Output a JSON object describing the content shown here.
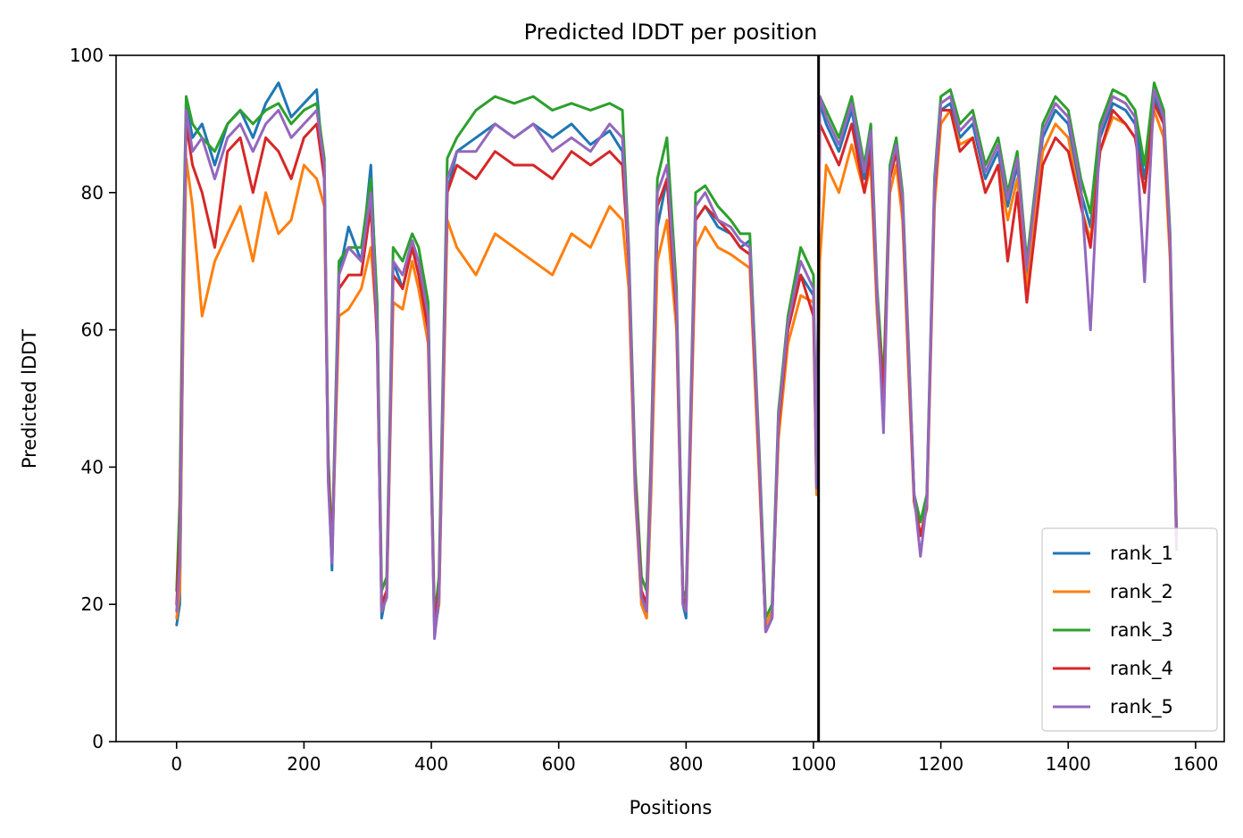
{
  "chart_data": {
    "type": "line",
    "title": "Predicted lDDT per position",
    "xlabel": "Positions",
    "ylabel": "Predicted lDDT",
    "xlim": [
      -95,
      1645
    ],
    "ylim": [
      0,
      100
    ],
    "xticks": [
      0,
      200,
      400,
      600,
      800,
      1000,
      1200,
      1400,
      1600
    ],
    "yticks": [
      0,
      20,
      40,
      60,
      80,
      100
    ],
    "grid": false,
    "legend": "lower right",
    "chain_break_x": 1008,
    "chain_break_color": "#000000",
    "series": [
      {
        "name": "rank_1",
        "color": "#1f77b4",
        "x": [
          0,
          5,
          10,
          15,
          25,
          40,
          60,
          80,
          100,
          120,
          140,
          160,
          180,
          200,
          220,
          232,
          238,
          244,
          255,
          270,
          290,
          305,
          315,
          322,
          330,
          340,
          355,
          370,
          380,
          395,
          405,
          412,
          425,
          440,
          470,
          500,
          530,
          560,
          590,
          620,
          650,
          680,
          700,
          710,
          720,
          730,
          738,
          745,
          755,
          770,
          785,
          795,
          800,
          805,
          815,
          830,
          850,
          870,
          885,
          900,
          915,
          925,
          935,
          945,
          960,
          980,
          1000,
          1005,
          1010,
          1020,
          1040,
          1060,
          1080,
          1090,
          1100,
          1110,
          1120,
          1130,
          1140,
          1150,
          1158,
          1168,
          1178,
          1190,
          1200,
          1215,
          1230,
          1250,
          1270,
          1290,
          1305,
          1320,
          1335,
          1345,
          1360,
          1380,
          1400,
          1420,
          1435,
          1450,
          1470,
          1490,
          1505,
          1520,
          1535,
          1550,
          1560,
          1570
        ],
        "y": [
          17,
          20,
          60,
          93,
          88,
          90,
          84,
          90,
          92,
          88,
          93,
          96,
          91,
          93,
          95,
          82,
          40,
          25,
          68,
          75,
          70,
          84,
          62,
          18,
          22,
          70,
          66,
          72,
          70,
          62,
          16,
          20,
          80,
          86,
          88,
          90,
          88,
          90,
          88,
          90,
          87,
          89,
          86,
          70,
          38,
          20,
          18,
          40,
          75,
          82,
          62,
          20,
          18,
          38,
          76,
          78,
          75,
          74,
          72,
          73,
          40,
          16,
          18,
          45,
          60,
          68,
          65,
          36,
          93,
          90,
          86,
          92,
          82,
          88,
          65,
          50,
          82,
          86,
          78,
          55,
          36,
          32,
          35,
          80,
          92,
          93,
          88,
          90,
          82,
          86,
          78,
          84,
          68,
          76,
          88,
          92,
          90,
          80,
          75,
          88,
          93,
          92,
          90,
          82,
          94,
          90,
          72,
          30
        ]
      },
      {
        "name": "rank_2",
        "color": "#ff7f0e",
        "x": [
          0,
          5,
          10,
          15,
          25,
          40,
          60,
          80,
          100,
          120,
          140,
          160,
          180,
          200,
          220,
          232,
          238,
          244,
          255,
          270,
          290,
          305,
          315,
          322,
          330,
          340,
          355,
          370,
          380,
          395,
          405,
          412,
          425,
          440,
          470,
          500,
          530,
          560,
          590,
          620,
          650,
          680,
          700,
          710,
          720,
          730,
          738,
          745,
          755,
          770,
          785,
          795,
          800,
          805,
          815,
          830,
          850,
          870,
          885,
          900,
          915,
          925,
          935,
          945,
          960,
          980,
          1000,
          1005,
          1010,
          1020,
          1040,
          1060,
          1080,
          1090,
          1100,
          1110,
          1120,
          1130,
          1140,
          1150,
          1158,
          1168,
          1178,
          1190,
          1200,
          1215,
          1230,
          1250,
          1270,
          1290,
          1305,
          1320,
          1335,
          1345,
          1360,
          1380,
          1400,
          1420,
          1435,
          1450,
          1470,
          1490,
          1505,
          1520,
          1535,
          1550,
          1560,
          1570
        ],
        "y": [
          18,
          22,
          58,
          85,
          78,
          62,
          70,
          74,
          78,
          70,
          80,
          74,
          76,
          84,
          82,
          78,
          40,
          27,
          62,
          63,
          66,
          72,
          60,
          19,
          21,
          64,
          63,
          70,
          66,
          58,
          17,
          20,
          76,
          72,
          68,
          74,
          72,
          70,
          68,
          74,
          72,
          78,
          76,
          66,
          36,
          20,
          18,
          36,
          70,
          76,
          60,
          21,
          19,
          36,
          72,
          75,
          72,
          71,
          70,
          69,
          38,
          17,
          19,
          44,
          58,
          65,
          64,
          36,
          70,
          84,
          80,
          87,
          80,
          84,
          62,
          48,
          80,
          84,
          76,
          52,
          35,
          30,
          34,
          78,
          90,
          92,
          87,
          88,
          80,
          84,
          76,
          82,
          66,
          74,
          86,
          90,
          88,
          78,
          73,
          86,
          91,
          90,
          88,
          80,
          92,
          88,
          70,
          29
        ]
      },
      {
        "name": "rank_3",
        "color": "#2ca02c",
        "x": [
          0,
          5,
          10,
          15,
          25,
          40,
          60,
          80,
          100,
          120,
          140,
          160,
          180,
          200,
          220,
          232,
          238,
          244,
          255,
          270,
          290,
          305,
          315,
          322,
          330,
          340,
          355,
          370,
          380,
          395,
          405,
          412,
          425,
          440,
          470,
          500,
          530,
          560,
          590,
          620,
          650,
          680,
          700,
          710,
          720,
          730,
          738,
          745,
          755,
          770,
          785,
          795,
          800,
          805,
          815,
          830,
          850,
          870,
          885,
          900,
          915,
          925,
          935,
          945,
          960,
          980,
          1000,
          1005,
          1010,
          1020,
          1040,
          1060,
          1080,
          1090,
          1100,
          1110,
          1120,
          1130,
          1140,
          1150,
          1158,
          1168,
          1178,
          1190,
          1200,
          1215,
          1230,
          1250,
          1270,
          1290,
          1305,
          1320,
          1335,
          1345,
          1360,
          1380,
          1400,
          1420,
          1435,
          1450,
          1470,
          1490,
          1505,
          1520,
          1535,
          1550,
          1560,
          1570
        ],
        "y": [
          22,
          35,
          70,
          94,
          90,
          88,
          86,
          90,
          92,
          90,
          92,
          93,
          90,
          92,
          93,
          85,
          42,
          28,
          70,
          72,
          72,
          82,
          64,
          22,
          24,
          72,
          70,
          74,
          72,
          64,
          18,
          24,
          85,
          88,
          92,
          94,
          93,
          94,
          92,
          93,
          92,
          93,
          92,
          72,
          40,
          24,
          22,
          42,
          82,
          88,
          66,
          22,
          21,
          40,
          80,
          81,
          78,
          76,
          74,
          74,
          42,
          18,
          20,
          48,
          62,
          72,
          68,
          38,
          94,
          92,
          88,
          94,
          84,
          90,
          66,
          52,
          84,
          88,
          80,
          56,
          36,
          32,
          36,
          82,
          94,
          95,
          90,
          92,
          84,
          88,
          80,
          86,
          70,
          78,
          90,
          94,
          92,
          82,
          77,
          90,
          95,
          94,
          92,
          84,
          96,
          92,
          74,
          31
        ]
      },
      {
        "name": "rank_4",
        "color": "#d62728",
        "x": [
          0,
          5,
          10,
          15,
          25,
          40,
          60,
          80,
          100,
          120,
          140,
          160,
          180,
          200,
          220,
          232,
          238,
          244,
          255,
          270,
          290,
          305,
          315,
          322,
          330,
          340,
          355,
          370,
          380,
          395,
          405,
          412,
          425,
          440,
          470,
          500,
          530,
          560,
          590,
          620,
          650,
          680,
          700,
          710,
          720,
          730,
          738,
          745,
          755,
          770,
          785,
          795,
          800,
          805,
          815,
          830,
          850,
          870,
          885,
          900,
          915,
          925,
          935,
          945,
          960,
          980,
          1000,
          1005,
          1010,
          1020,
          1040,
          1060,
          1080,
          1090,
          1100,
          1110,
          1120,
          1130,
          1140,
          1150,
          1158,
          1168,
          1178,
          1190,
          1200,
          1215,
          1230,
          1250,
          1270,
          1290,
          1305,
          1320,
          1335,
          1345,
          1360,
          1380,
          1400,
          1420,
          1435,
          1450,
          1470,
          1490,
          1505,
          1520,
          1535,
          1550,
          1560,
          1570
        ],
        "y": [
          20,
          30,
          65,
          90,
          84,
          80,
          72,
          86,
          88,
          80,
          88,
          86,
          82,
          88,
          90,
          82,
          40,
          27,
          66,
          68,
          68,
          78,
          58,
          20,
          22,
          68,
          66,
          72,
          68,
          60,
          17,
          22,
          80,
          84,
          82,
          86,
          84,
          84,
          82,
          86,
          84,
          86,
          84,
          70,
          38,
          22,
          20,
          40,
          78,
          82,
          62,
          21,
          20,
          38,
          76,
          78,
          76,
          74,
          72,
          71,
          40,
          16,
          18,
          46,
          60,
          68,
          62,
          37,
          90,
          88,
          84,
          90,
          80,
          86,
          64,
          50,
          82,
          86,
          78,
          54,
          35,
          30,
          34,
          80,
          92,
          92,
          86,
          88,
          80,
          84,
          70,
          80,
          64,
          72,
          84,
          88,
          86,
          78,
          72,
          86,
          92,
          90,
          88,
          80,
          93,
          90,
          72,
          30
        ]
      },
      {
        "name": "rank_5",
        "color": "#9467bd",
        "x": [
          0,
          5,
          10,
          15,
          25,
          40,
          60,
          80,
          100,
          120,
          140,
          160,
          180,
          200,
          220,
          232,
          238,
          244,
          255,
          270,
          290,
          305,
          315,
          322,
          330,
          340,
          355,
          370,
          380,
          395,
          405,
          412,
          425,
          440,
          470,
          500,
          530,
          560,
          590,
          620,
          650,
          680,
          700,
          710,
          720,
          730,
          738,
          745,
          755,
          770,
          785,
          795,
          800,
          805,
          815,
          830,
          850,
          870,
          885,
          900,
          915,
          925,
          935,
          945,
          960,
          980,
          1000,
          1005,
          1010,
          1020,
          1040,
          1060,
          1080,
          1090,
          1100,
          1110,
          1120,
          1130,
          1140,
          1150,
          1158,
          1168,
          1178,
          1190,
          1200,
          1215,
          1230,
          1250,
          1270,
          1290,
          1305,
          1320,
          1335,
          1345,
          1360,
          1380,
          1400,
          1420,
          1435,
          1450,
          1470,
          1490,
          1505,
          1520,
          1535,
          1550,
          1560,
          1570
        ],
        "y": [
          19,
          26,
          62,
          92,
          86,
          88,
          82,
          88,
          90,
          86,
          90,
          92,
          88,
          90,
          92,
          84,
          38,
          26,
          68,
          72,
          70,
          80,
          60,
          19,
          21,
          70,
          68,
          73,
          70,
          62,
          15,
          21,
          82,
          86,
          86,
          90,
          88,
          90,
          86,
          88,
          86,
          90,
          88,
          71,
          37,
          21,
          19,
          39,
          80,
          84,
          64,
          20,
          19,
          39,
          78,
          80,
          76,
          75,
          73,
          72,
          41,
          16,
          18,
          47,
          61,
          70,
          66,
          37,
          94,
          91,
          87,
          93,
          83,
          89,
          65,
          45,
          83,
          87,
          79,
          55,
          36,
          27,
          35,
          81,
          93,
          94,
          89,
          91,
          83,
          87,
          79,
          85,
          69,
          77,
          89,
          93,
          91,
          81,
          60,
          89,
          94,
          93,
          91,
          67,
          95,
          91,
          73,
          28
        ]
      }
    ]
  }
}
